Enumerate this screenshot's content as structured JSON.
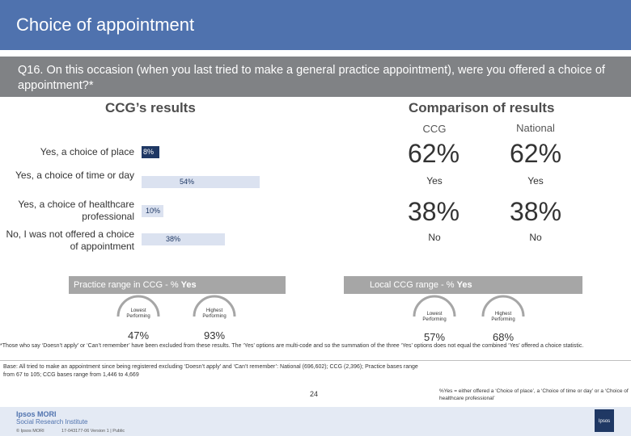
{
  "header": {
    "title": "Choice of appointment"
  },
  "question": "Q16. On this occasion (when you last tried to make a general practice appointment), were you offered a choice of appointment?*",
  "ccg_results": {
    "title": "CCG’s results",
    "bar_color": "#1f3864",
    "bar_color_light": "#dbe2f0",
    "chart_data": {
      "type": "bar",
      "categories": [
        "Yes, a choice of place",
        "Yes, a choice of time or day",
        "Yes, a choice of healthcare professional",
        "No, I was not offered a choice of appointment"
      ],
      "values": [
        8,
        54,
        10,
        38
      ],
      "value_labels": [
        "8%",
        "54%",
        "10%",
        "38%"
      ],
      "xlim": [
        0,
        100
      ]
    }
  },
  "comparison": {
    "title": "Comparison of results",
    "col_ccg": "CCG",
    "col_national": "National",
    "yes_ccg": "62%",
    "yes_national": "62%",
    "yes_label": "Yes",
    "no_ccg": "38%",
    "no_national": "38%",
    "no_label": "No"
  },
  "practice_range": {
    "banner": "Practice range in CCG - % ",
    "banner_bold": "Yes",
    "lowest_label": "Lowest Performing",
    "lowest_value": "47%",
    "highest_label": "Highest Performing",
    "highest_value": "93%"
  },
  "local_range": {
    "banner": "Local CCG range - % ",
    "banner_bold": "Yes",
    "lowest_label": "Lowest Performing",
    "lowest_value": "57%",
    "highest_label": "Highest Performing",
    "highest_value": "68%"
  },
  "footnotes": {
    "asterisk": "*Those who say ‘Doesn’t apply’ or ‘Can’t remember’ have been excluded from these results. The ‘Yes’ options are multi-code and so the summation of the three ‘Yes’ options does not equal the combined ‘Yes’ offered a choice statistic.",
    "base": "Base: All tried to make an appointment since being registered excluding ‘Doesn’t apply’ and ‘Can’t remember’: National (696,602); CCG (2,396); Practice bases range from 67 to 105; CCG bases range from 1,446 to 4,669",
    "yes_note": "%Yes = either offered a ‘Choice of place’, a ‘Choice of time or day’ or a ‘Choice of healthcare professional’"
  },
  "footer": {
    "logo_line1": "Ipsos MORI",
    "logo_line2": "Social Research Institute",
    "copyright": "© Ipsos MORI",
    "job_ref": "17-043177-06 Version 1 | Public",
    "page_number": "24",
    "corner_logo_text": "Ipsos"
  }
}
